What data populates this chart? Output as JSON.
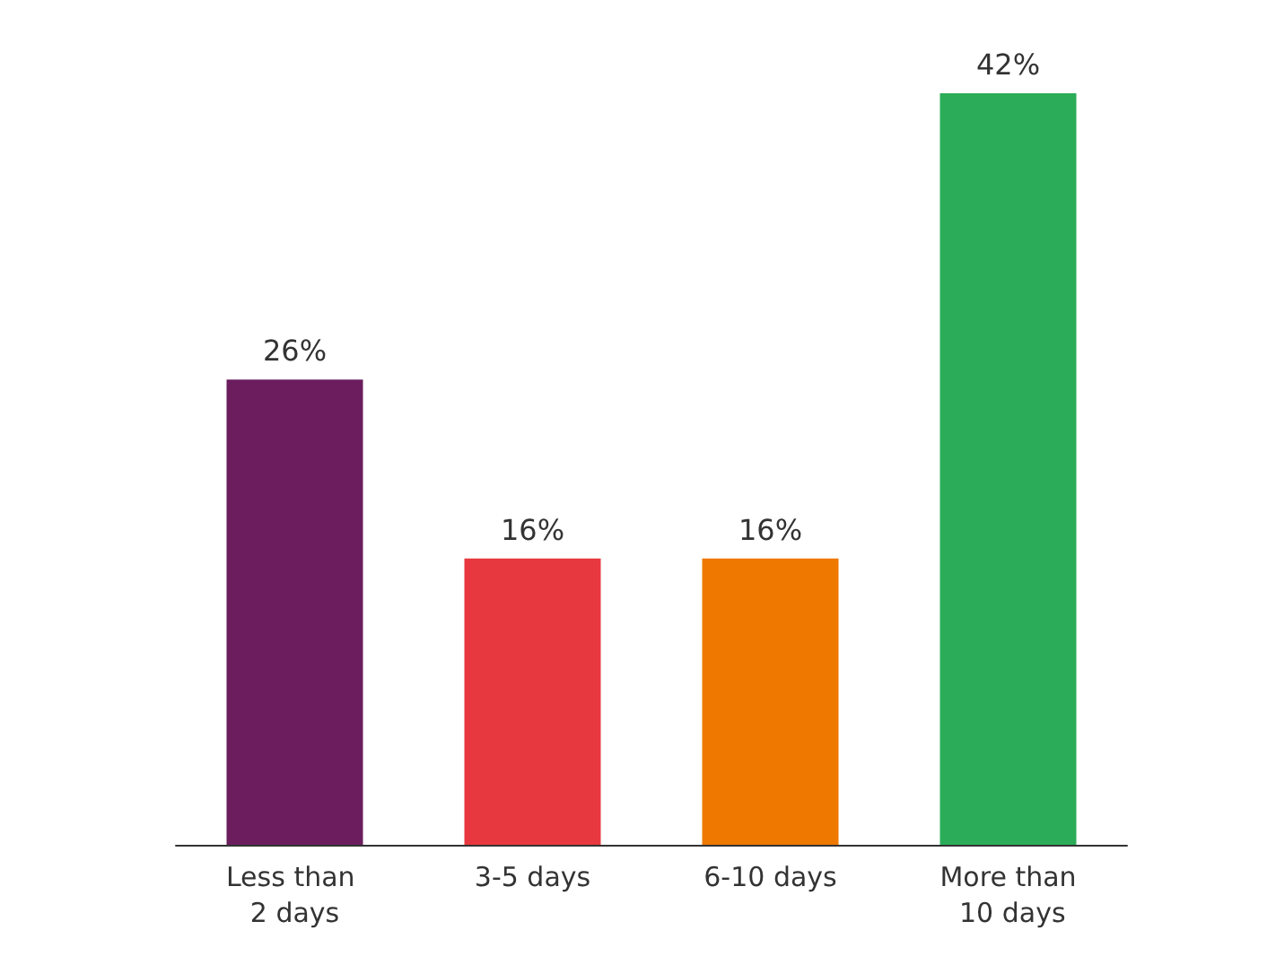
{
  "chart_data": {
    "type": "bar",
    "categories": [
      "Less than 2 days",
      "3-5 days",
      "6-10 days",
      "More than 10 days"
    ],
    "values": [
      26,
      16,
      16,
      42
    ],
    "value_labels": [
      "26%",
      "16%",
      "16%",
      "42%"
    ],
    "colors": [
      "#6b1d5e",
      "#e8383f",
      "#ef7800",
      "#2bac58"
    ],
    "tick_labels": "x"
  }
}
